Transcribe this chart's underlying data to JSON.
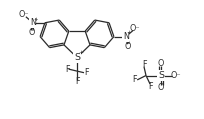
{
  "bg_color": "#ffffff",
  "line_color": "#2a2a2a",
  "line_width": 0.9,
  "font_size": 5.8,
  "fig_width": 2.04,
  "fig_height": 1.19,
  "dpi": 100,
  "xlim": [
    0,
    10.2
  ],
  "ylim": [
    0,
    5.9
  ]
}
